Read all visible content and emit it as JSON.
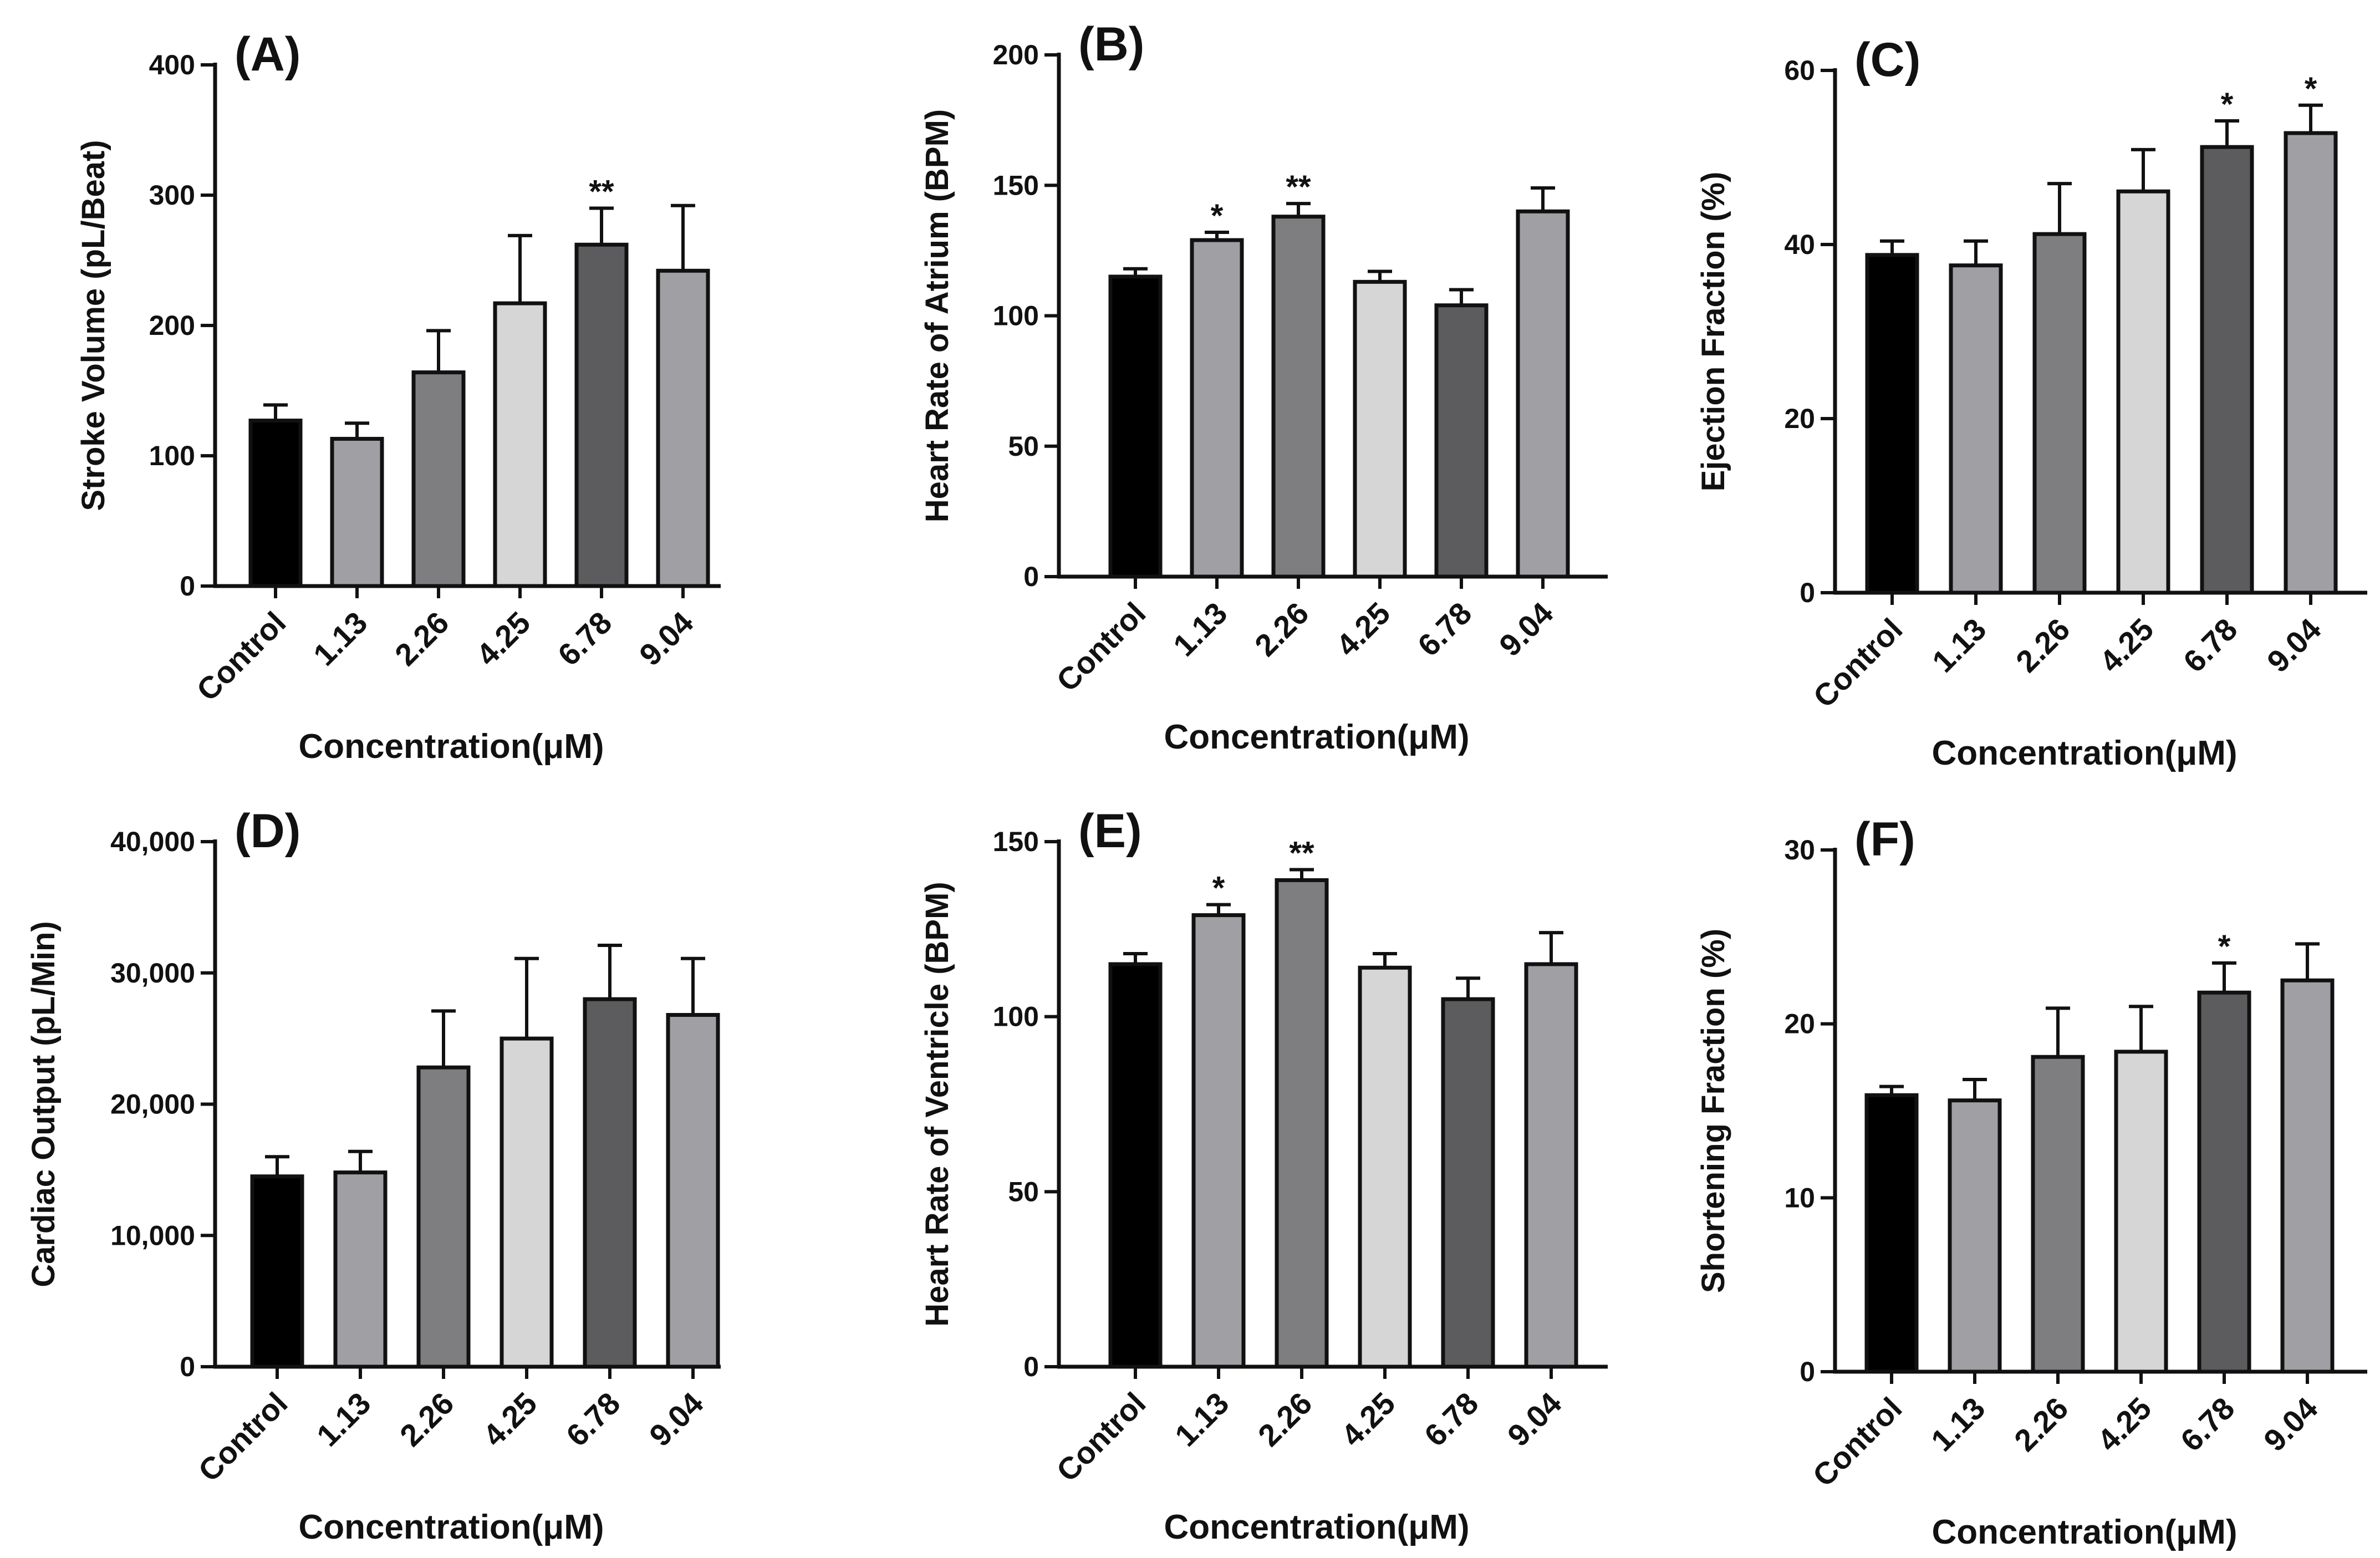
{
  "chart_data": [
    {
      "type": "bar",
      "panel": "(A)",
      "categories": [
        "Control",
        "1.13",
        "2.26",
        "4.25",
        "6.78",
        "9.04"
      ],
      "values": [
        127,
        113,
        164,
        217,
        262,
        242
      ],
      "errors": [
        12,
        12,
        32,
        52,
        28,
        50
      ],
      "significance": [
        "",
        "",
        "",
        "",
        "**",
        ""
      ],
      "ylabel": "Stroke Volume (pL/Beat)",
      "xlabel": "Concentration(μM)",
      "ylim": [
        0,
        400
      ],
      "yticks": [
        0,
        100,
        200,
        300,
        400
      ],
      "ytick_labels": [
        "0",
        "100",
        "200",
        "300",
        "400"
      ],
      "bar_colors": [
        "#000000",
        "#a0a0a4",
        "#7e7e80",
        "#d6d6d6",
        "#5c5c5e",
        "#a0a0a4"
      ]
    },
    {
      "type": "bar",
      "panel": "(B)",
      "categories": [
        "Control",
        "1.13",
        "2.26",
        "4.25",
        "6.78",
        "9.04"
      ],
      "values": [
        115,
        129,
        138,
        113,
        104,
        140
      ],
      "errors": [
        3,
        3,
        5,
        4,
        6,
        9
      ],
      "significance": [
        "",
        "*",
        "**",
        "",
        "",
        ""
      ],
      "ylabel": "Heart Rate of Atrium (BPM)",
      "xlabel": "Concentration(μM)",
      "ylim": [
        0,
        200
      ],
      "yticks": [
        0,
        50,
        100,
        150,
        200
      ],
      "ytick_labels": [
        "0",
        "50",
        "100",
        "150",
        "200"
      ],
      "bar_colors": [
        "#000000",
        "#a0a0a4",
        "#7e7e80",
        "#d6d6d6",
        "#5c5c5e",
        "#a0a0a4"
      ]
    },
    {
      "type": "bar",
      "panel": "(C)",
      "categories": [
        "Control",
        "1.13",
        "2.26",
        "4.25",
        "6.78",
        "9.04"
      ],
      "values": [
        38.8,
        37.6,
        41.2,
        46.1,
        51.2,
        52.8
      ],
      "errors": [
        1.6,
        2.8,
        5.8,
        4.8,
        3,
        3.2
      ],
      "significance": [
        "",
        "",
        "",
        "",
        "*",
        "*"
      ],
      "ylabel": "Ejection Fraction (%)",
      "xlabel": "Concentration(μM)",
      "ylim": [
        0,
        60
      ],
      "yticks": [
        0,
        20,
        40,
        60
      ],
      "ytick_labels": [
        "0",
        "20",
        "40",
        "60"
      ],
      "bar_colors": [
        "#000000",
        "#a0a0a4",
        "#7e7e80",
        "#d6d6d6",
        "#5c5c5e",
        "#a0a0a4"
      ]
    },
    {
      "type": "bar",
      "panel": "(D)",
      "categories": [
        "Control",
        "1.13",
        "2.26",
        "4.25",
        "6.78",
        "9.04"
      ],
      "values": [
        14500,
        14800,
        22800,
        25000,
        28000,
        26800
      ],
      "errors": [
        1500,
        1600,
        4300,
        6100,
        4100,
        4300
      ],
      "significance": [
        "",
        "",
        "",
        "",
        "",
        ""
      ],
      "ylabel": "Cardiac Output (pL/Min)",
      "xlabel": "Concentration(μM)",
      "ylim": [
        0,
        40000
      ],
      "yticks": [
        0,
        10000,
        20000,
        30000,
        40000
      ],
      "ytick_labels": [
        "0",
        "10,000",
        "20,000",
        "30,000",
        "40,000"
      ],
      "bar_colors": [
        "#000000",
        "#a0a0a4",
        "#7e7e80",
        "#d6d6d6",
        "#5c5c5e",
        "#a0a0a4"
      ]
    },
    {
      "type": "bar",
      "panel": "(E)",
      "categories": [
        "Control",
        "1.13",
        "2.26",
        "4.25",
        "6.78",
        "9.04"
      ],
      "values": [
        115,
        129,
        139,
        114,
        105,
        115
      ],
      "errors": [
        3,
        3,
        3,
        4,
        6,
        9
      ],
      "significance": [
        "",
        "*",
        "**",
        "",
        "",
        ""
      ],
      "ylabel": "Heart Rate of Ventricle (BPM)",
      "xlabel": "Concentration(μM)",
      "ylim": [
        0,
        150
      ],
      "yticks": [
        0,
        50,
        100,
        150
      ],
      "ytick_labels": [
        "0",
        "50",
        "100",
        "150"
      ],
      "bar_colors": [
        "#000000",
        "#a0a0a4",
        "#7e7e80",
        "#d6d6d6",
        "#5c5c5e",
        "#a0a0a4"
      ]
    },
    {
      "type": "bar",
      "panel": "(F)",
      "categories": [
        "Control",
        "1.13",
        "2.26",
        "4.25",
        "6.78",
        "9.04"
      ],
      "values": [
        15.9,
        15.6,
        18.1,
        18.4,
        21.8,
        22.5
      ],
      "errors": [
        0.5,
        1.2,
        2.8,
        2.6,
        1.7,
        2.1
      ],
      "significance": [
        "",
        "",
        "",
        "",
        "*",
        ""
      ],
      "ylabel": "Shortening Fraction (%)",
      "xlabel": "Concentration(μM)",
      "ylim": [
        0,
        30
      ],
      "yticks": [
        0,
        10,
        20,
        30
      ],
      "ytick_labels": [
        "0",
        "10",
        "20",
        "30"
      ],
      "bar_colors": [
        "#000000",
        "#a0a0a4",
        "#7e7e80",
        "#d6d6d6",
        "#5c5c5e",
        "#a0a0a4"
      ]
    }
  ]
}
